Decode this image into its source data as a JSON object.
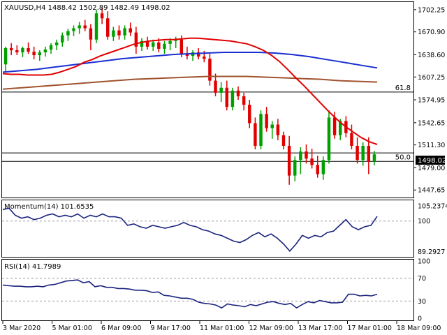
{
  "header": "XAUUSD,H4  1488.42 1502.89 1482.49 1498.02",
  "current_price_label": "1498.02",
  "colors": {
    "bull": "#00a000",
    "bear": "#e00000",
    "ma_fast": "#e00000",
    "ma_mid": "#1a2fd0",
    "ma_slow": "#a0522d",
    "osc": "#1a237e"
  },
  "chart_data": [
    {
      "type": "candlestick",
      "symbol": "XAUUSD",
      "timeframe": "H4",
      "ohlc_last": {
        "open": 1488.42,
        "high": 1502.89,
        "low": 1482.49,
        "close": 1498.02
      },
      "ylim": [
        1440,
        1710
      ],
      "y_ticks": [
        1702.25,
        1670.9,
        1638.6,
        1607.25,
        1574.95,
        1542.65,
        1511.3,
        1479.0,
        1447.65
      ],
      "x_ticks": [
        "3 Mar 2020",
        "5 Mar 01:00",
        "6 Mar 09:00",
        "9 Mar 17:00",
        "11 Mar 01:00",
        "12 Mar 09:00",
        "13 Mar 17:00",
        "17 Mar 01:00",
        "18 Mar 09:00"
      ],
      "fib_levels": [
        {
          "label": "61.8",
          "value": 1586
        },
        {
          "label": "50.0",
          "value": 1488
        }
      ],
      "current_line": 1500,
      "candles": [
        [
          1625,
          1650,
          1615,
          1648
        ],
        [
          1648,
          1655,
          1638,
          1645
        ],
        [
          1645,
          1652,
          1638,
          1642
        ],
        [
          1642,
          1650,
          1635,
          1648
        ],
        [
          1648,
          1656,
          1640,
          1643
        ],
        [
          1643,
          1650,
          1632,
          1638
        ],
        [
          1638,
          1645,
          1630,
          1642
        ],
        [
          1642,
          1650,
          1636,
          1646
        ],
        [
          1646,
          1655,
          1640,
          1652
        ],
        [
          1652,
          1660,
          1645,
          1656
        ],
        [
          1656,
          1670,
          1650,
          1666
        ],
        [
          1666,
          1675,
          1658,
          1672
        ],
        [
          1672,
          1680,
          1665,
          1676
        ],
        [
          1676,
          1685,
          1668,
          1680
        ],
        [
          1680,
          1688,
          1672,
          1676
        ],
        [
          1676,
          1682,
          1645,
          1660
        ],
        [
          1660,
          1702,
          1655,
          1697
        ],
        [
          1697,
          1705,
          1682,
          1690
        ],
        [
          1690,
          1700,
          1660,
          1664
        ],
        [
          1664,
          1678,
          1658,
          1673
        ],
        [
          1673,
          1680,
          1660,
          1666
        ],
        [
          1666,
          1680,
          1660,
          1676
        ],
        [
          1676,
          1684,
          1665,
          1670
        ],
        [
          1670,
          1678,
          1640,
          1650
        ],
        [
          1650,
          1662,
          1644,
          1658
        ],
        [
          1658,
          1664,
          1646,
          1650
        ],
        [
          1650,
          1660,
          1644,
          1656
        ],
        [
          1656,
          1662,
          1642,
          1647
        ],
        [
          1647,
          1658,
          1640,
          1654
        ],
        [
          1654,
          1662,
          1645,
          1658
        ],
        [
          1658,
          1664,
          1648,
          1660
        ],
        [
          1660,
          1666,
          1635,
          1640
        ],
        [
          1640,
          1650,
          1632,
          1637
        ],
        [
          1637,
          1645,
          1630,
          1642
        ],
        [
          1642,
          1648,
          1632,
          1636
        ],
        [
          1636,
          1644,
          1628,
          1633
        ],
        [
          1633,
          1640,
          1595,
          1602
        ],
        [
          1602,
          1612,
          1580,
          1585
        ],
        [
          1585,
          1600,
          1572,
          1592
        ],
        [
          1592,
          1602,
          1560,
          1565
        ],
        [
          1565,
          1592,
          1560,
          1588
        ],
        [
          1588,
          1594,
          1575,
          1580
        ],
        [
          1580,
          1585,
          1560,
          1568
        ],
        [
          1568,
          1575,
          1535,
          1542
        ],
        [
          1542,
          1550,
          1505,
          1510
        ],
        [
          1510,
          1560,
          1505,
          1555
        ],
        [
          1555,
          1565,
          1530,
          1535
        ],
        [
          1535,
          1545,
          1520,
          1540
        ],
        [
          1540,
          1548,
          1518,
          1525
        ],
        [
          1525,
          1530,
          1505,
          1510
        ],
        [
          1510,
          1524,
          1455,
          1468
        ],
        [
          1468,
          1495,
          1460,
          1490
        ],
        [
          1490,
          1508,
          1470,
          1502
        ],
        [
          1502,
          1512,
          1485,
          1492
        ],
        [
          1492,
          1506,
          1478,
          1483
        ],
        [
          1483,
          1496,
          1465,
          1470
        ],
        [
          1470,
          1495,
          1462,
          1490
        ],
        [
          1490,
          1560,
          1485,
          1550
        ],
        [
          1550,
          1558,
          1520,
          1525
        ],
        [
          1525,
          1548,
          1518,
          1545
        ],
        [
          1545,
          1552,
          1522,
          1528
        ],
        [
          1528,
          1540,
          1505,
          1510
        ],
        [
          1510,
          1522,
          1485,
          1490
        ],
        [
          1490,
          1515,
          1482,
          1510
        ],
        [
          1510,
          1522,
          1470,
          1488
        ],
        [
          1488.42,
          1502.89,
          1482.49,
          1498.02
        ]
      ],
      "ma_fast": [
        1612,
        1611,
        1611,
        1610,
        1610,
        1610,
        1611,
        1614,
        1618,
        1622,
        1628,
        1632,
        1637,
        1641,
        1645,
        1649,
        1653,
        1656,
        1658,
        1659,
        1660,
        1660,
        1661,
        1662,
        1662,
        1661,
        1660,
        1659,
        1658,
        1656,
        1654,
        1650,
        1645,
        1638,
        1629,
        1618,
        1606,
        1595,
        1583,
        1571,
        1559,
        1548,
        1538,
        1530,
        1522,
        1516,
        1512
      ],
      "ma_mid": [
        1614,
        1616,
        1618,
        1621,
        1624,
        1627,
        1630,
        1633,
        1635,
        1637,
        1639,
        1640,
        1641,
        1642,
        1642,
        1642,
        1641,
        1639,
        1636,
        1632,
        1628,
        1624,
        1620
      ],
      "ma_slow": [
        1590,
        1592,
        1594,
        1596,
        1598,
        1600,
        1602,
        1604,
        1605,
        1606,
        1607,
        1608,
        1608,
        1608,
        1607,
        1606,
        1605,
        1604,
        1602,
        1601,
        1600
      ]
    },
    {
      "type": "line",
      "title": "Momentum(14) 101.6535",
      "ylim": [
        88,
        107
      ],
      "y_ticks": [
        105.2374,
        100,
        89.2927
      ],
      "series": [
        {
          "values": [
            104,
            104.5,
            102,
            101,
            101.5,
            100.5,
            101,
            102,
            102.5,
            101.5,
            102,
            101.5,
            102.5,
            101,
            102,
            101.5,
            102.5,
            101.5,
            101.5,
            101,
            98.5,
            99,
            98,
            97.5,
            98.5,
            98,
            97.5,
            98,
            98.5,
            99.5,
            98.5,
            98,
            97,
            96.5,
            95.5,
            95,
            94,
            93,
            92.5,
            93.5,
            95,
            96,
            94.5,
            95.5,
            94,
            92,
            89.5,
            92,
            95,
            94,
            95,
            94.5,
            96,
            96.5,
            98.5,
            100.5,
            98,
            97,
            98,
            98.5,
            101.6535
          ]
        }
      ]
    },
    {
      "type": "line",
      "title": "RSI(14) 41.7989",
      "ylim": [
        0,
        100
      ],
      "y_ticks": [
        100,
        70,
        30,
        0
      ],
      "levels": [
        70,
        30
      ],
      "series": [
        {
          "values": [
            58,
            57,
            56,
            56,
            55,
            55,
            56,
            55,
            58,
            59,
            62,
            65,
            66,
            67,
            62,
            64,
            55,
            57,
            54,
            54,
            52,
            52,
            51,
            49,
            49,
            48,
            45,
            46,
            40,
            39,
            37,
            35,
            35,
            33,
            28,
            26,
            25,
            23,
            18,
            25,
            23,
            22,
            20,
            24,
            22,
            25,
            28,
            29,
            26,
            24,
            26,
            18,
            24,
            29,
            27,
            31,
            29,
            27,
            27,
            28,
            42,
            42,
            39,
            40,
            39,
            42
          ]
        }
      ]
    }
  ]
}
